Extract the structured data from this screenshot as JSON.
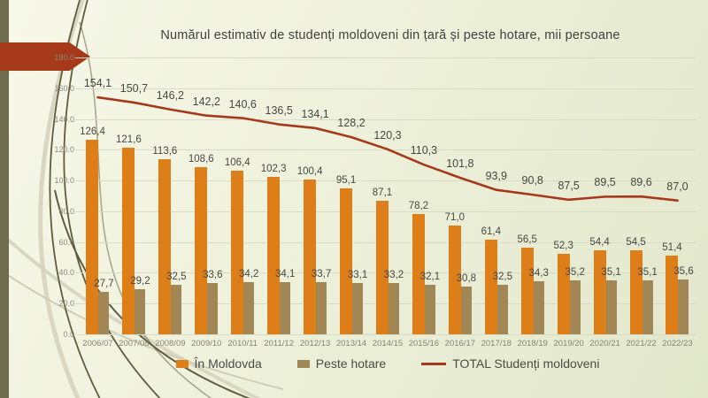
{
  "slide": {
    "title": "Numărul estimativ de studenți moldoveni din țară și peste hotare, mii persoane"
  },
  "palette": {
    "bar_in_moldova": "#de7e18",
    "bar_peste_hotare": "#a28756",
    "total_line": "#a6391a",
    "left_strip": "#6f6b4d",
    "arrow_banner": "#a6391a",
    "gridline": "#d9dcc5",
    "label_text": "#474742",
    "axis_text": "#8b8a77"
  },
  "chart_data": {
    "type": "bar",
    "subtype": "grouped bars with total line overlay",
    "title": "Numărul estimativ de studenți moldoveni din țară și peste hotare, mii persoane",
    "xlabel": "",
    "ylabel": "",
    "ylim": [
      0,
      180
    ],
    "y_ticks": [
      "0.0",
      "20.0",
      "40.0",
      "60.0",
      "80.0",
      "100.0",
      "120.0",
      "140.0",
      "160.0",
      "180.0"
    ],
    "grid": "horizontal",
    "legend_position": "bottom",
    "value_decimal_separator": ",",
    "categories": [
      "2006/07",
      "2007/08",
      "2008/09",
      "2009/10",
      "2010/11",
      "2011/12",
      "2012/13",
      "2013/14",
      "2014/15",
      "2015/16",
      "2016/17",
      "2017/18",
      "2018/19",
      "2019/20",
      "2020/21",
      "2021/22",
      "2022/23"
    ],
    "series": [
      {
        "name": "În Moldovda",
        "type": "bar",
        "color": "#de7e18",
        "values": [
          126.4,
          121.6,
          113.6,
          108.6,
          106.4,
          102.3,
          100.4,
          95.1,
          87.1,
          78.2,
          71.0,
          61.4,
          56.5,
          52.3,
          54.4,
          54.5,
          51.4
        ]
      },
      {
        "name": "Peste hotare",
        "type": "bar",
        "color": "#a28756",
        "values": [
          27.7,
          29.2,
          32.5,
          33.6,
          34.2,
          34.1,
          33.7,
          33.1,
          33.2,
          32.1,
          30.8,
          32.5,
          34.3,
          35.2,
          35.1,
          35.1,
          35.6
        ]
      },
      {
        "name": "TOTAL Studenți moldoveni",
        "type": "line",
        "color": "#a6391a",
        "values": [
          154.1,
          150.7,
          146.2,
          142.2,
          140.6,
          136.5,
          134.1,
          128.2,
          120.3,
          110.3,
          101.8,
          93.9,
          90.8,
          87.5,
          89.5,
          89.6,
          87.0
        ]
      }
    ]
  }
}
